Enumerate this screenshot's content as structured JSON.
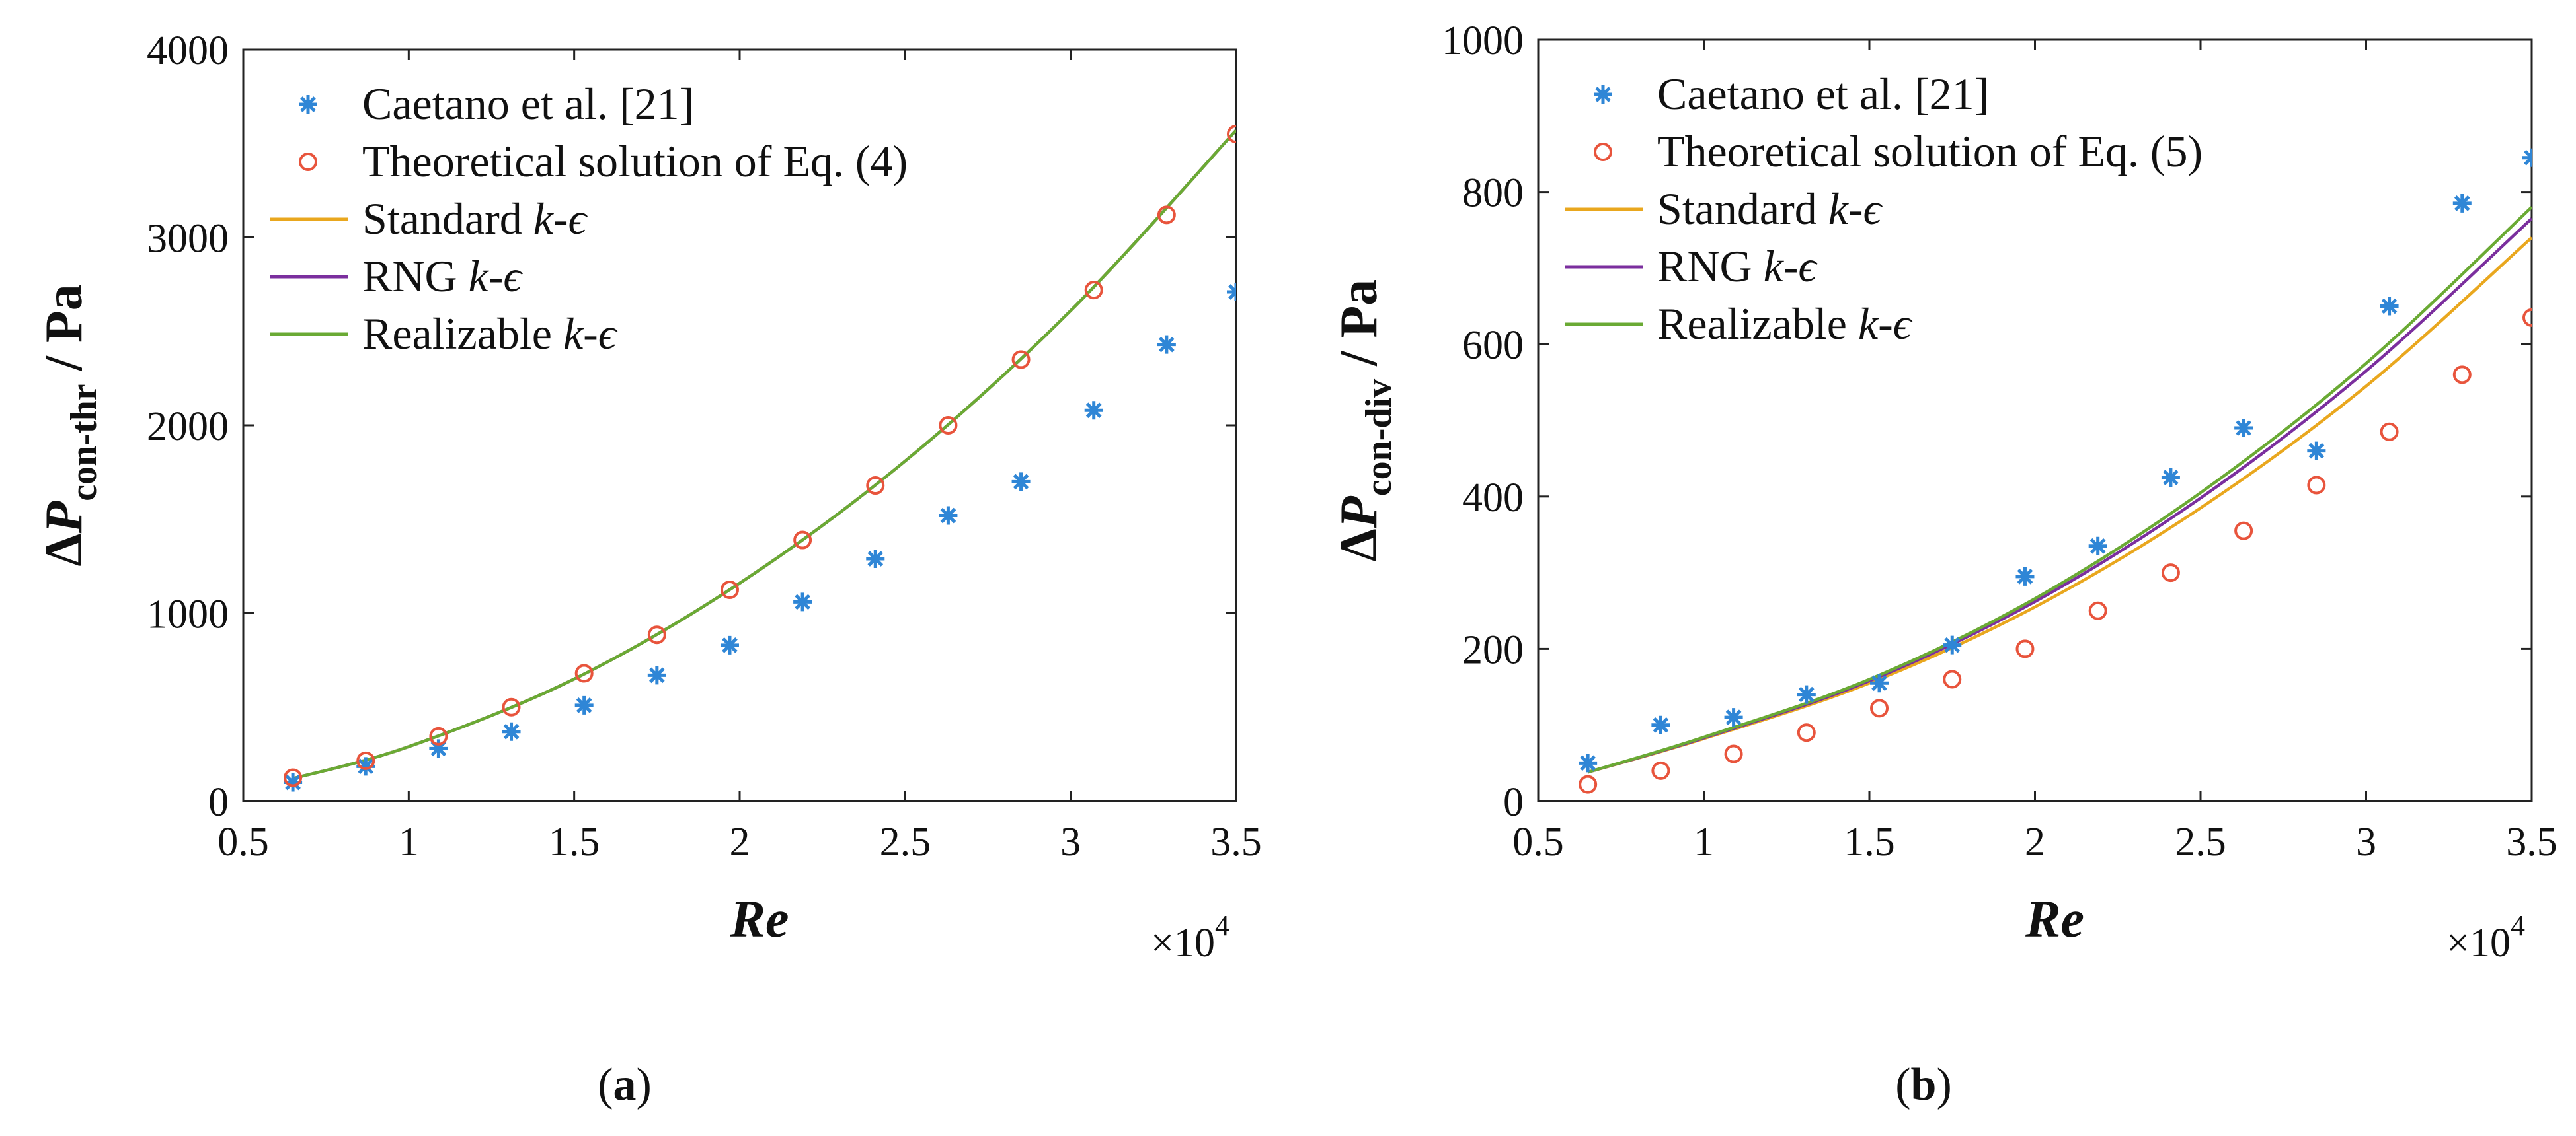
{
  "chart_data": [
    {
      "type": "scatter",
      "panel_label": "a",
      "xlabel": "Re",
      "xmultiplier": "×10",
      "xmultiplier_exp": "4",
      "ylabel_prefix": "ΔP",
      "ylabel_sub": "con-thr",
      "ylabel_unit": " / Pa",
      "xlim": [
        0.5,
        3.5
      ],
      "ylim": [
        0,
        4000
      ],
      "x_ticks": [
        0.5,
        1,
        1.5,
        2,
        2.5,
        3,
        3.5
      ],
      "x_tick_labels": [
        "0.5",
        "1",
        "1.5",
        "2",
        "2.5",
        "3",
        "3.5"
      ],
      "y_ticks": [
        0,
        1000,
        2000,
        3000,
        4000
      ],
      "y_tick_labels": [
        "0",
        "1000",
        "2000",
        "3000",
        "4000"
      ],
      "legend_position": "top-left",
      "series": [
        {
          "name": "Caetano et al. [21]",
          "kind": "marker-star",
          "color": "#2f86d6",
          "x": [
            0.65,
            0.87,
            1.09,
            1.31,
            1.53,
            1.75,
            1.97,
            2.19,
            2.41,
            2.63,
            2.85,
            3.07,
            3.29,
            3.5
          ],
          "y": [
            100,
            185,
            280,
            370,
            510,
            670,
            830,
            1060,
            1290,
            1520,
            1700,
            2080,
            2430,
            2710
          ]
        },
        {
          "name": "Theoretical solution of Eq. (4)",
          "kind": "marker-circle",
          "color": "#e8543c",
          "x": [
            0.65,
            0.87,
            1.09,
            1.31,
            1.53,
            1.75,
            1.97,
            2.19,
            2.41,
            2.63,
            2.85,
            3.07,
            3.29,
            3.5
          ],
          "y": [
            125,
            215,
            345,
            500,
            680,
            885,
            1125,
            1390,
            1680,
            2000,
            2350,
            2720,
            3120,
            3550
          ]
        },
        {
          "name": "Standard k-ϵ",
          "kind": "line",
          "color": "#e9a71e",
          "x": [
            0.65,
            1.0,
            1.5,
            2.0,
            2.5,
            3.0,
            3.5
          ],
          "y": [
            120,
            290,
            650,
            1160,
            1810,
            2610,
            3570
          ]
        },
        {
          "name": "RNG k-ϵ",
          "kind": "line",
          "color": "#7b2f9e",
          "x": [
            0.65,
            1.0,
            1.5,
            2.0,
            2.5,
            3.0,
            3.5
          ],
          "y": [
            120,
            290,
            650,
            1160,
            1810,
            2610,
            3570
          ]
        },
        {
          "name": "Realizable k-ϵ",
          "kind": "line",
          "color": "#6aaa34",
          "x": [
            0.65,
            1.0,
            1.5,
            2.0,
            2.5,
            3.0,
            3.5
          ],
          "y": [
            120,
            290,
            650,
            1160,
            1810,
            2610,
            3570
          ]
        }
      ]
    },
    {
      "type": "scatter",
      "panel_label": "b",
      "xlabel": "Re",
      "xmultiplier": "×10",
      "xmultiplier_exp": "4",
      "ylabel_prefix": "ΔP",
      "ylabel_sub": "con-div",
      "ylabel_unit": " / Pa",
      "xlim": [
        0.5,
        3.5
      ],
      "ylim": [
        0,
        1000
      ],
      "x_ticks": [
        0.5,
        1,
        1.5,
        2,
        2.5,
        3,
        3.5
      ],
      "x_tick_labels": [
        "0.5",
        "1",
        "1.5",
        "2",
        "2.5",
        "3",
        "3.5"
      ],
      "y_ticks": [
        0,
        200,
        400,
        600,
        800,
        1000
      ],
      "y_tick_labels": [
        "0",
        "200",
        "400",
        "600",
        "800",
        "1000"
      ],
      "legend_position": "top-left",
      "series": [
        {
          "name": "Caetano et al. [21]",
          "kind": "marker-star",
          "color": "#2f86d6",
          "x": [
            0.65,
            0.87,
            1.09,
            1.31,
            1.53,
            1.75,
            1.97,
            2.19,
            2.41,
            2.63,
            2.85,
            3.07,
            3.29,
            3.5
          ],
          "y": [
            50,
            100,
            110,
            140,
            155,
            205,
            295,
            335,
            425,
            490,
            460,
            650,
            785,
            845
          ]
        },
        {
          "name": "Theoretical solution of Eq. (5)",
          "kind": "marker-circle",
          "color": "#e8543c",
          "x": [
            0.65,
            0.87,
            1.09,
            1.31,
            1.53,
            1.75,
            1.97,
            2.19,
            2.41,
            2.63,
            2.85,
            3.07,
            3.29,
            3.5
          ],
          "y": [
            22,
            40,
            62,
            90,
            122,
            160,
            200,
            250,
            300,
            355,
            415,
            485,
            560,
            635
          ]
        },
        {
          "name": "Standard k-ϵ",
          "kind": "line",
          "color": "#e9a71e",
          "x": [
            0.65,
            1.0,
            1.5,
            2.0,
            2.5,
            3.0,
            3.5
          ],
          "y": [
            38,
            82,
            155,
            255,
            385,
            545,
            740
          ]
        },
        {
          "name": "RNG k-ϵ",
          "kind": "line",
          "color": "#7b2f9e",
          "x": [
            0.65,
            1.0,
            1.5,
            2.0,
            2.5,
            3.0,
            3.5
          ],
          "y": [
            38,
            83,
            158,
            262,
            398,
            565,
            765
          ]
        },
        {
          "name": "Realizable k-ϵ",
          "kind": "line",
          "color": "#6aaa34",
          "x": [
            0.65,
            1.0,
            1.5,
            2.0,
            2.5,
            3.0,
            3.5
          ],
          "y": [
            38,
            84,
            160,
            266,
            405,
            575,
            780
          ]
        }
      ]
    }
  ]
}
